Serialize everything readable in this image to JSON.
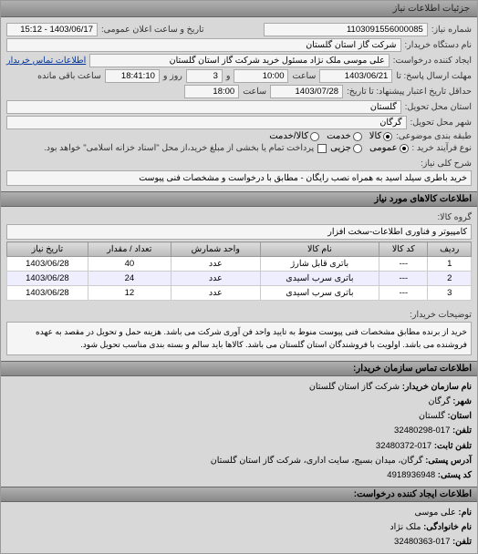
{
  "header": {
    "title": "جزئیات اطلاعات نیاز"
  },
  "info": {
    "number_label": "شماره نیاز:",
    "number": "1103091556000085",
    "public_date_label": "تاریخ و ساعت اعلان عمومی:",
    "public_date": "1403/06/17 - 15:12",
    "buyer_label": "نام دستگاه خریدار:",
    "buyer": "شرکت گاز استان گلستان",
    "requester_label": "ایجاد کننده درخواست:",
    "requester": "علی موسی ملک نژاد مسئول خرید شرکت گاز استان گلستان",
    "contact_link": "اطلاعات تماس خریدار",
    "deadline_send_label": "مهلت ارسال پاسخ: تا",
    "deadline_date": "1403/06/21",
    "deadline_hour_label": "ساعت",
    "deadline_hour": "10:00",
    "remain_label_and": "و",
    "remain_days": "3",
    "remain_day_label": "روز و",
    "remain_time": "18:41:10",
    "remain_suffix": "ساعت باقی مانده",
    "validity_label": "حداقل تاریخ اعتبار پیشنهاد: تا تاریخ:",
    "validity_date": "1403/07/28",
    "validity_hour_label": "ساعت",
    "validity_hour": "18:00",
    "province_label": "استان محل تحویل:",
    "province": "گلستان",
    "city_label": "شهر محل تحویل:",
    "city": "گرگان",
    "pack_label": "طبقه بندی موضوعی:",
    "pack_opts": [
      "کالا",
      "خدمت",
      "کالا/خدمت"
    ],
    "pack_checked": 0,
    "buy_type_label": "نوع فرآیند خرید :",
    "buy_opts": [
      "عمومی",
      "جزیی"
    ],
    "buy_checked": 0,
    "payment_note_chk_label": "پرداخت تمام یا بخشی از مبلغ خرید،از محل \"اسناد خزانه اسلامی\" خواهد بود.",
    "subject_label": "شرح کلی نیاز:",
    "subject": "خرید باطری سیلد اسید به همراه نصب رایگان - مطابق با درخواست و مشخصات فنی پیوست"
  },
  "goods": {
    "title": "اطلاعات کالاهای مورد نیاز",
    "group_label": "گروه کالا:",
    "group": "کامپیوتر و فناوری اطلاعات-سخت افزار",
    "columns": [
      "ردیف",
      "کد کالا",
      "نام کالا",
      "واحد شمارش",
      "تعداد / مقدار",
      "تاریخ نیاز"
    ],
    "rows": [
      [
        "1",
        "---",
        "باتری قابل شارژ",
        "عدد",
        "40",
        "1403/06/28"
      ],
      [
        "2",
        "---",
        "باتری سرب اسیدی",
        "عدد",
        "24",
        "1403/06/28"
      ],
      [
        "3",
        "---",
        "باتری سرب اسیدی",
        "عدد",
        "12",
        "1403/06/28"
      ]
    ]
  },
  "notes": {
    "label": "توضیحات خریدار:",
    "text": "خرید از برنده مطابق مشخصات فنی پیوست منوط به تایید واحد فن آوری شرکت می باشد. هزینه حمل و تحویل در مقصد به عهده فروشنده می باشد. اولویت با فروشندگان استان گلستان می باشد. کالاها باید سالم و بسته بندی مناسب تحویل شود."
  },
  "contact": {
    "title": "اطلاعات تماس سازمان خریدار:",
    "org_label": "نام سازمان خریدار:",
    "org": "شرکت گاز استان گلستان",
    "city_label": "شهر:",
    "city": "گرگان",
    "prov_label": "استان:",
    "prov": "گلستان",
    "tel_label": "تلفن:",
    "tel": "017-32480298",
    "fax_label": "تلفن ثابت:",
    "fax": "017-32480372",
    "addr_label": "آدرس پستی:",
    "addr": "گرگان، میدان بسیج، سایت اداری، شرکت گاز استان گلستان",
    "post_label": "کد پستی:",
    "post": "4918936948",
    "creator_title": "اطلاعات ایجاد کننده درخواست:",
    "name_label": "نام:",
    "name": "علی موسی",
    "lname_label": "نام خانوادگی:",
    "lname": "ملک نژاد",
    "ctel_label": "تلفن:",
    "ctel": "017-32480363"
  }
}
